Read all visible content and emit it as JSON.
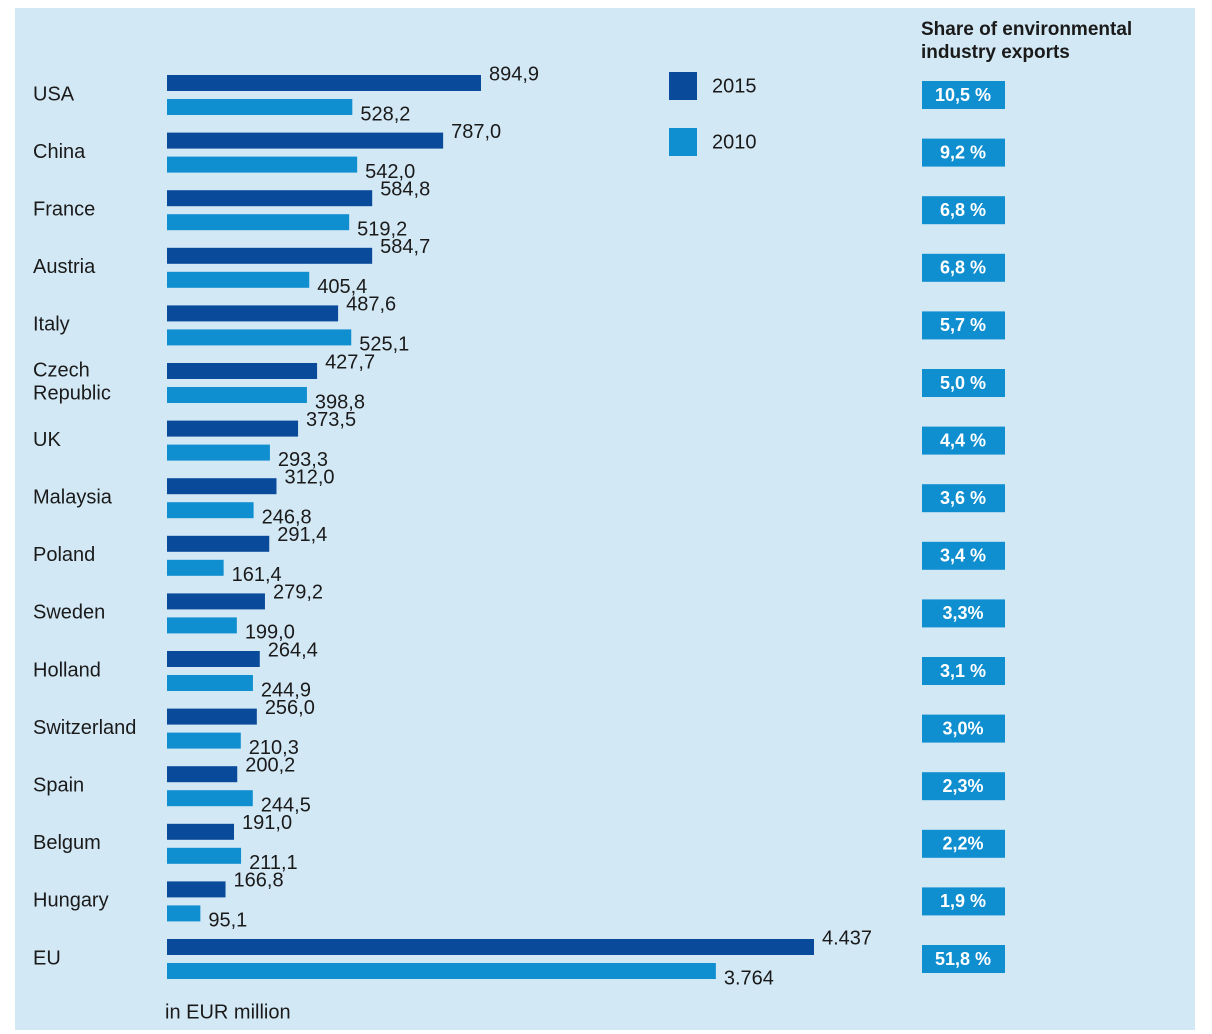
{
  "chart_data": {
    "type": "bar",
    "orientation": "horizontal",
    "categories": [
      "USA",
      "China",
      "France",
      "Austria",
      "Italy",
      "Czech Republic",
      "UK",
      "Malaysia",
      "Poland",
      "Sweden",
      "Holland",
      "Switzerland",
      "Spain",
      "Belgum",
      "Hungary",
      "EU"
    ],
    "series": [
      {
        "name": "2015",
        "color": "#0a4a9a",
        "values": [
          894.9,
          787.0,
          584.8,
          584.7,
          487.6,
          427.7,
          373.5,
          312.0,
          291.4,
          279.2,
          264.4,
          256.0,
          200.2,
          191.0,
          166.8,
          4437
        ],
        "value_labels": [
          "894,9",
          "787,0",
          "584,8",
          "584,7",
          "487,6",
          "427,7",
          "373,5",
          "312,0",
          "291,4",
          "279,2",
          "264,4",
          "256,0",
          "200,2",
          "191,0",
          "166,8",
          "4.437"
        ]
      },
      {
        "name": "2010",
        "color": "#0f8fd0",
        "values": [
          528.2,
          542.0,
          519.2,
          405.4,
          525.1,
          398.8,
          293.3,
          246.8,
          161.4,
          199.0,
          244.9,
          210.3,
          244.5,
          211.1,
          95.1,
          3764
        ],
        "value_labels": [
          "528,2",
          "542,0",
          "519,2",
          "405,4",
          "525,1",
          "398,8",
          "293,3",
          "246,8",
          "161,4",
          "199,0",
          "244,9",
          "210,3",
          "244,5",
          "211,1",
          "95,1",
          "3.764"
        ]
      }
    ],
    "unit_note": "in EUR million",
    "share": {
      "title": "Share of environmental industry exports",
      "color": "#0f8fd0",
      "values": [
        10.5,
        9.2,
        6.8,
        6.8,
        5.7,
        5.0,
        4.4,
        3.6,
        3.4,
        3.3,
        3.1,
        3.0,
        2.3,
        2.2,
        1.9,
        51.8
      ],
      "value_labels": [
        "10,5 %",
        "9,2 %",
        "6,8 %",
        "6,8 %",
        "5,7 %",
        "5,0 %",
        "4,4 %",
        "3,6 %",
        "3,4 %",
        "3,3%",
        "3,1 %",
        "3,0%",
        "2,3%",
        "2,2%",
        "1,9 %",
        "51,8 %"
      ]
    }
  }
}
